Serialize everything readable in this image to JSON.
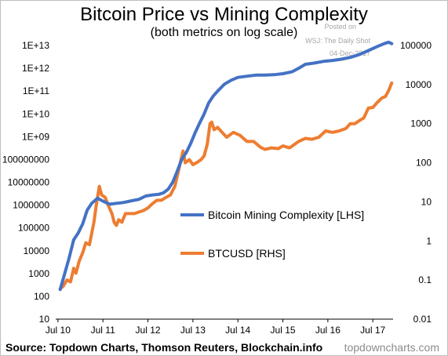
{
  "header": {
    "title": "Bitcoin Price vs Mining Complexity",
    "subtitle": "(both metrics on log scale)",
    "posted_on": "Posted on",
    "wsj": "WSJ: The Daily Shot",
    "date": "04-Dec-2017"
  },
  "footer": {
    "source": "Source: Topdown Charts, Thomson Reuters, Blockchain.info",
    "site": "topdowncharts.com"
  },
  "colors": {
    "complexity": "#4472c4",
    "btcusd": "#ed7d31"
  },
  "chart_data": {
    "type": "line",
    "title": "Bitcoin Price vs Mining Complexity",
    "subtitle": "(both metrics on log scale)",
    "x_range": [
      2010.45,
      2017.95
    ],
    "x_ticks": [
      {
        "value": 2010.5,
        "label": "Jul 10"
      },
      {
        "value": 2011.5,
        "label": "Jul 11"
      },
      {
        "value": 2012.5,
        "label": "Jul 12"
      },
      {
        "value": 2013.5,
        "label": "Jul 13"
      },
      {
        "value": 2014.5,
        "label": "Jul 14"
      },
      {
        "value": 2015.5,
        "label": "Jul 15"
      },
      {
        "value": 2016.5,
        "label": "Jul 16"
      },
      {
        "value": 2017.5,
        "label": "Jul 17"
      }
    ],
    "y_left": {
      "scale": "log",
      "range": [
        10,
        10000000000000
      ],
      "ticks": [
        {
          "value": 10,
          "label": "10"
        },
        {
          "value": 100,
          "label": "100"
        },
        {
          "value": 1000,
          "label": "1000"
        },
        {
          "value": 10000,
          "label": "10000"
        },
        {
          "value": 100000,
          "label": "100000"
        },
        {
          "value": 1000000,
          "label": "1000000"
        },
        {
          "value": 10000000,
          "label": "10000000"
        },
        {
          "value": 100000000,
          "label": "100000000"
        },
        {
          "value": 1000000000,
          "label": "1E+09"
        },
        {
          "value": 10000000000,
          "label": "1E+10"
        },
        {
          "value": 100000000000,
          "label": "1E+11"
        },
        {
          "value": 1000000000000,
          "label": "1E+12"
        },
        {
          "value": 10000000000000,
          "label": "1E+13"
        }
      ]
    },
    "y_right": {
      "scale": "log",
      "range": [
        0.01,
        100000
      ],
      "ticks": [
        {
          "value": 0.01,
          "label": "0.01"
        },
        {
          "value": 0.1,
          "label": "0.1"
        },
        {
          "value": 1,
          "label": "1"
        },
        {
          "value": 10,
          "label": "10"
        },
        {
          "value": 100,
          "label": "100"
        },
        {
          "value": 1000,
          "label": "1000"
        },
        {
          "value": 10000,
          "label": "10000"
        },
        {
          "value": 100000,
          "label": "100000"
        }
      ]
    },
    "grid": false,
    "legend_position": "center-right",
    "series": [
      {
        "name": "Bitcoin Mining Complexity [LHS]",
        "axis": "left",
        "points": [
          [
            2010.55,
            200
          ],
          [
            2010.65,
            1000
          ],
          [
            2010.75,
            5000
          ],
          [
            2010.85,
            30000
          ],
          [
            2010.95,
            60000
          ],
          [
            2011.05,
            150000
          ],
          [
            2011.15,
            600000
          ],
          [
            2011.25,
            1200000
          ],
          [
            2011.38,
            2000000
          ],
          [
            2011.5,
            1500000
          ],
          [
            2011.65,
            1100000
          ],
          [
            2011.8,
            1200000
          ],
          [
            2011.95,
            1300000
          ],
          [
            2012.1,
            1500000
          ],
          [
            2012.3,
            1800000
          ],
          [
            2012.45,
            2500000
          ],
          [
            2012.6,
            2800000
          ],
          [
            2012.75,
            3000000
          ],
          [
            2012.85,
            3500000
          ],
          [
            2012.95,
            5000000
          ],
          [
            2013.05,
            10000000
          ],
          [
            2013.15,
            30000000
          ],
          [
            2013.25,
            100000000
          ],
          [
            2013.35,
            200000000
          ],
          [
            2013.45,
            500000000
          ],
          [
            2013.55,
            1500000000
          ],
          [
            2013.65,
            4000000000
          ],
          [
            2013.75,
            10000000000
          ],
          [
            2013.85,
            30000000000
          ],
          [
            2013.95,
            60000000000
          ],
          [
            2014.05,
            100000000000
          ],
          [
            2014.2,
            200000000000
          ],
          [
            2014.35,
            300000000000
          ],
          [
            2014.5,
            400000000000
          ],
          [
            2014.7,
            450000000000
          ],
          [
            2014.9,
            500000000000
          ],
          [
            2015.1,
            500000000000
          ],
          [
            2015.3,
            520000000000
          ],
          [
            2015.5,
            580000000000
          ],
          [
            2015.7,
            700000000000
          ],
          [
            2015.85,
            1000000000000
          ],
          [
            2016.0,
            1500000000000
          ],
          [
            2016.2,
            1700000000000
          ],
          [
            2016.4,
            2000000000000
          ],
          [
            2016.6,
            2200000000000
          ],
          [
            2016.8,
            2500000000000
          ],
          [
            2017.0,
            3000000000000
          ],
          [
            2017.2,
            4000000000000
          ],
          [
            2017.4,
            6000000000000
          ],
          [
            2017.6,
            9000000000000
          ],
          [
            2017.75,
            12000000000000
          ],
          [
            2017.85,
            14000000000000
          ],
          [
            2017.92,
            12000000000000
          ]
        ]
      },
      {
        "name": "BTCUSD [RHS]",
        "axis": "right",
        "points": [
          [
            2010.55,
            0.06
          ],
          [
            2010.62,
            0.07
          ],
          [
            2010.7,
            0.1
          ],
          [
            2010.78,
            0.09
          ],
          [
            2010.85,
            0.2
          ],
          [
            2010.9,
            0.15
          ],
          [
            2010.97,
            0.3
          ],
          [
            2011.05,
            0.5
          ],
          [
            2011.12,
            0.9
          ],
          [
            2011.2,
            0.8
          ],
          [
            2011.3,
            3
          ],
          [
            2011.35,
            8
          ],
          [
            2011.42,
            25
          ],
          [
            2011.47,
            15
          ],
          [
            2011.55,
            13
          ],
          [
            2011.62,
            8
          ],
          [
            2011.7,
            5
          ],
          [
            2011.75,
            3
          ],
          [
            2011.8,
            2.5
          ],
          [
            2011.85,
            3.5
          ],
          [
            2011.92,
            3
          ],
          [
            2012.0,
            5
          ],
          [
            2012.1,
            5
          ],
          [
            2012.2,
            5
          ],
          [
            2012.3,
            5.5
          ],
          [
            2012.4,
            6
          ],
          [
            2012.5,
            7
          ],
          [
            2012.6,
            9
          ],
          [
            2012.7,
            11
          ],
          [
            2012.8,
            11
          ],
          [
            2012.9,
            13
          ],
          [
            2013.0,
            15
          ],
          [
            2013.1,
            25
          ],
          [
            2013.2,
            80
          ],
          [
            2013.28,
            200
          ],
          [
            2013.33,
            100
          ],
          [
            2013.42,
            120
          ],
          [
            2013.5,
            90
          ],
          [
            2013.58,
            100
          ],
          [
            2013.68,
            120
          ],
          [
            2013.75,
            150
          ],
          [
            2013.82,
            300
          ],
          [
            2013.88,
            1000
          ],
          [
            2013.92,
            1100
          ],
          [
            2013.97,
            700
          ],
          [
            2014.05,
            800
          ],
          [
            2014.15,
            600
          ],
          [
            2014.25,
            450
          ],
          [
            2014.4,
            600
          ],
          [
            2014.55,
            500
          ],
          [
            2014.7,
            350
          ],
          [
            2014.85,
            350
          ],
          [
            2015.0,
            250
          ],
          [
            2015.1,
            220
          ],
          [
            2015.25,
            240
          ],
          [
            2015.4,
            230
          ],
          [
            2015.5,
            270
          ],
          [
            2015.65,
            240
          ],
          [
            2015.85,
            350
          ],
          [
            2016.0,
            420
          ],
          [
            2016.15,
            400
          ],
          [
            2016.3,
            450
          ],
          [
            2016.45,
            650
          ],
          [
            2016.6,
            600
          ],
          [
            2016.75,
            650
          ],
          [
            2016.9,
            750
          ],
          [
            2017.0,
            1000
          ],
          [
            2017.1,
            1000
          ],
          [
            2017.2,
            1200
          ],
          [
            2017.3,
            1400
          ],
          [
            2017.4,
            2500
          ],
          [
            2017.5,
            2600
          ],
          [
            2017.6,
            3500
          ],
          [
            2017.7,
            4500
          ],
          [
            2017.78,
            5000
          ],
          [
            2017.85,
            7000
          ],
          [
            2017.92,
            11000
          ]
        ]
      }
    ]
  }
}
